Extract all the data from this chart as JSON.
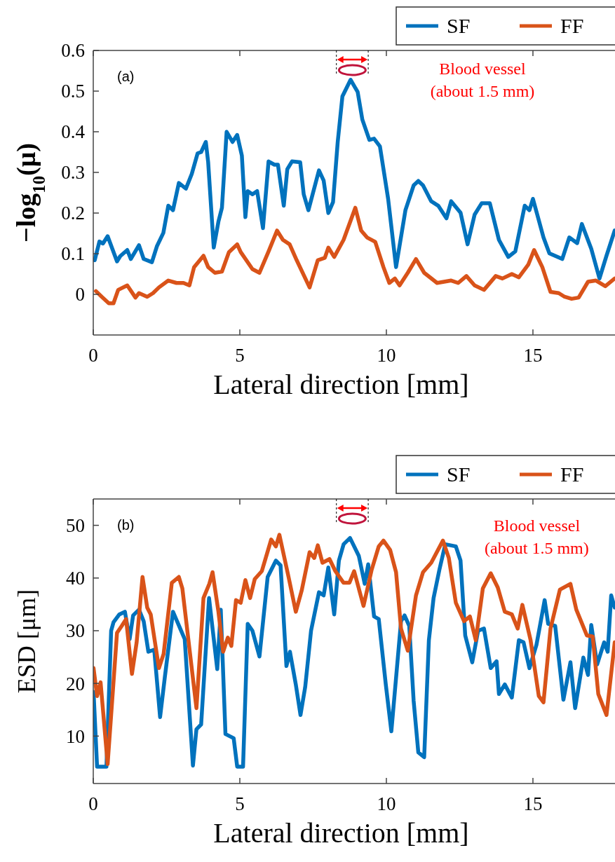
{
  "chart_data": [
    {
      "type": "line",
      "xlabel": "Lateral direction [mm]",
      "ylabel": "−log$_{10}$(μ)",
      "xlim": [
        0,
        17.8
      ],
      "xticks": [
        0,
        5,
        10,
        15
      ],
      "ylim": [
        -0.1,
        0.6
      ],
      "yticks": [
        0,
        0.1,
        0.2,
        0.3,
        0.4,
        0.5,
        0.6
      ],
      "legend": "top right",
      "annotations": [
        "(a)",
        "Blood vessel\n(about 1.5 mm)"
      ],
      "series": [
        {
          "name": "SF",
          "color": "#0072bd",
          "x": [
            0.05,
            0.21,
            0.33,
            0.49,
            0.81,
            0.92,
            1.16,
            1.28,
            1.56,
            1.72,
            2.0,
            2.17,
            2.39,
            2.56,
            2.72,
            2.92,
            3.16,
            3.36,
            3.56,
            3.68,
            3.84,
            3.92,
            4.11,
            4.27,
            4.39,
            4.55,
            4.75,
            4.91,
            5.07,
            5.19,
            5.27,
            5.43,
            5.59,
            5.79,
            5.98,
            6.18,
            6.3,
            6.5,
            6.62,
            6.78,
            7.06,
            7.18,
            7.34,
            7.7,
            7.86,
            8.02,
            8.18,
            8.34,
            8.5,
            8.78,
            9.02,
            9.18,
            9.42,
            9.58,
            9.78,
            10.06,
            10.33,
            10.65,
            10.93,
            11.09,
            11.25,
            11.53,
            11.77,
            12.05,
            12.21,
            12.53,
            12.77,
            13.01,
            13.25,
            13.53,
            13.84,
            14.16,
            14.4,
            14.72,
            14.88,
            15.0,
            15.36,
            15.56,
            16.0,
            16.24,
            16.51,
            16.67,
            16.99,
            17.27,
            17.51,
            17.79
          ],
          "values": [
            0.084,
            0.13,
            0.125,
            0.143,
            0.081,
            0.094,
            0.109,
            0.087,
            0.121,
            0.087,
            0.079,
            0.118,
            0.151,
            0.218,
            0.207,
            0.274,
            0.26,
            0.296,
            0.347,
            0.35,
            0.375,
            0.325,
            0.115,
            0.179,
            0.213,
            0.4,
            0.375,
            0.392,
            0.341,
            0.19,
            0.254,
            0.246,
            0.254,
            0.163,
            0.327,
            0.319,
            0.319,
            0.218,
            0.308,
            0.327,
            0.325,
            0.246,
            0.207,
            0.305,
            0.28,
            0.2,
            0.227,
            0.375,
            0.487,
            0.528,
            0.498,
            0.43,
            0.38,
            0.383,
            0.364,
            0.235,
            0.067,
            0.207,
            0.268,
            0.279,
            0.268,
            0.229,
            0.218,
            0.187,
            0.229,
            0.201,
            0.123,
            0.196,
            0.224,
            0.224,
            0.134,
            0.092,
            0.106,
            0.218,
            0.207,
            0.235,
            0.14,
            0.101,
            0.087,
            0.14,
            0.126,
            0.173,
            0.112,
            0.039,
            0.095,
            0.157
          ]
        },
        {
          "name": "FF",
          "color": "#d95319",
          "x": [
            0.09,
            0.29,
            0.53,
            0.69,
            0.85,
            1.16,
            1.44,
            1.56,
            1.84,
            2.04,
            2.24,
            2.56,
            2.84,
            3.08,
            3.28,
            3.44,
            3.76,
            3.92,
            4.15,
            4.39,
            4.63,
            4.91,
            5.03,
            5.43,
            5.67,
            5.99,
            6.27,
            6.47,
            6.7,
            6.94,
            7.38,
            7.66,
            7.9,
            8.02,
            8.22,
            8.54,
            8.94,
            9.14,
            9.34,
            9.62,
            9.9,
            10.1,
            10.29,
            10.45,
            10.73,
            11.01,
            11.29,
            11.73,
            12.21,
            12.45,
            12.73,
            13.01,
            13.33,
            13.73,
            13.96,
            14.28,
            14.52,
            14.84,
            15.04,
            15.32,
            15.6,
            15.88,
            16.08,
            16.32,
            16.56,
            16.88,
            17.15,
            17.47,
            17.79
          ],
          "values": [
            0.008,
            -0.006,
            -0.022,
            -0.022,
            0.011,
            0.022,
            -0.008,
            0.003,
            -0.006,
            0.003,
            0.017,
            0.034,
            0.028,
            0.028,
            0.022,
            0.067,
            0.095,
            0.067,
            0.053,
            0.056,
            0.104,
            0.123,
            0.104,
            0.062,
            0.053,
            0.107,
            0.157,
            0.134,
            0.123,
            0.084,
            0.017,
            0.084,
            0.09,
            0.115,
            0.092,
            0.134,
            0.213,
            0.157,
            0.14,
            0.129,
            0.067,
            0.028,
            0.039,
            0.022,
            0.053,
            0.087,
            0.053,
            0.028,
            0.034,
            0.028,
            0.045,
            0.022,
            0.011,
            0.045,
            0.039,
            0.05,
            0.042,
            0.073,
            0.109,
            0.067,
            0.006,
            0.003,
            -0.006,
            -0.011,
            -0.008,
            0.031,
            0.034,
            0.02,
            0.039
          ]
        }
      ]
    },
    {
      "type": "line",
      "xlabel": "Lateral direction [mm]",
      "ylabel": "ESD [μm]",
      "xlim": [
        0,
        17.8
      ],
      "xticks": [
        0,
        5,
        10,
        15
      ],
      "ylim": [
        1,
        55
      ],
      "yticks": [
        10,
        20,
        30,
        40,
        50
      ],
      "legend": "top right",
      "annotations": [
        "(b)",
        "Blood vessel\n(about 1.5 mm)"
      ],
      "series": [
        {
          "name": "SF",
          "color": "#0072bd",
          "x": [
            0.01,
            0.13,
            0.45,
            0.61,
            0.69,
            0.89,
            1.08,
            1.24,
            1.36,
            1.56,
            1.72,
            1.88,
            2.08,
            2.28,
            2.44,
            2.72,
            2.92,
            3.12,
            3.4,
            3.52,
            3.68,
            3.95,
            4.07,
            4.23,
            4.35,
            4.51,
            4.79,
            4.91,
            5.11,
            5.27,
            5.43,
            5.67,
            5.95,
            6.23,
            6.39,
            6.59,
            6.71,
            6.91,
            7.07,
            7.23,
            7.43,
            7.7,
            7.86,
            8.02,
            8.22,
            8.38,
            8.54,
            8.76,
            9.06,
            9.26,
            9.38,
            9.58,
            9.74,
            9.98,
            10.17,
            10.5,
            10.62,
            10.78,
            10.93,
            11.09,
            11.29,
            11.45,
            11.61,
            11.81,
            12.01,
            12.37,
            12.53,
            12.69,
            12.93,
            13.13,
            13.33,
            13.56,
            13.76,
            13.84,
            14.04,
            14.28,
            14.52,
            14.68,
            14.88,
            15.12,
            15.4,
            15.52,
            15.76,
            16.04,
            16.28,
            16.44,
            16.72,
            16.88,
            16.99,
            17.19,
            17.43,
            17.55,
            17.67,
            17.79
          ],
          "values": [
            18.4,
            4.2,
            4.2,
            30,
            31.6,
            33.1,
            33.6,
            28.4,
            32.9,
            34,
            31.8,
            26,
            26.4,
            13.6,
            21.1,
            33.6,
            31,
            28.4,
            4.4,
            11.3,
            12.2,
            36.2,
            30.4,
            22.7,
            34,
            10.4,
            9.6,
            4.2,
            4.2,
            31.3,
            30,
            25.1,
            40.2,
            43.3,
            42.4,
            23.3,
            26,
            19.8,
            14,
            19.3,
            30,
            37.3,
            36.7,
            42,
            33.1,
            43.3,
            46.4,
            47.6,
            44.2,
            38.9,
            42.6,
            32.7,
            32.2,
            19.8,
            10.9,
            31.8,
            32.9,
            30.9,
            16.7,
            6.9,
            6,
            28.2,
            36.2,
            41.6,
            46.4,
            46,
            43.3,
            29.1,
            24,
            30,
            30.4,
            22.9,
            24.2,
            18,
            19.8,
            17.3,
            28.2,
            27.8,
            22.9,
            27.3,
            35.8,
            31.3,
            30.9,
            16.9,
            24,
            15.3,
            24.9,
            21.6,
            31.1,
            23.6,
            27.8,
            26,
            36.7,
            34.4
          ]
        },
        {
          "name": "FF",
          "color": "#d95319",
          "x": [
            0.01,
            0.13,
            0.25,
            0.49,
            0.61,
            0.81,
            0.97,
            1.12,
            1.32,
            1.48,
            1.68,
            1.84,
            1.96,
            2.24,
            2.4,
            2.68,
            2.92,
            3.04,
            3.52,
            3.76,
            3.96,
            4.07,
            4.27,
            4.43,
            4.59,
            4.71,
            4.87,
            5.03,
            5.19,
            5.35,
            5.51,
            5.75,
            6.07,
            6.23,
            6.35,
            6.67,
            6.91,
            7.11,
            7.38,
            7.54,
            7.66,
            7.82,
            8.06,
            8.26,
            8.54,
            8.74,
            8.9,
            9.22,
            9.5,
            9.74,
            9.9,
            10.13,
            10.33,
            10.5,
            10.73,
            11.01,
            11.25,
            11.53,
            11.93,
            12.13,
            12.37,
            12.65,
            12.85,
            13.05,
            13.29,
            13.56,
            13.8,
            14.04,
            14.28,
            14.48,
            14.64,
            14.92,
            15.2,
            15.36,
            15.6,
            15.92,
            16.28,
            16.48,
            16.84,
            17.04,
            17.23,
            17.51,
            17.79
          ],
          "values": [
            22.9,
            17.6,
            20.2,
            4.7,
            14,
            29.6,
            30.9,
            32.2,
            21.8,
            27.8,
            40.2,
            34.4,
            33.1,
            22.9,
            25.6,
            39.1,
            40.2,
            38,
            15.3,
            36.2,
            38.9,
            41.1,
            33.6,
            26,
            28.7,
            27.1,
            35.8,
            35.3,
            39.6,
            36.2,
            39.8,
            41.3,
            47.3,
            46,
            48.2,
            40,
            33.6,
            37.6,
            44.9,
            43.8,
            46.2,
            42.9,
            43.6,
            41.3,
            39.1,
            39.1,
            41.3,
            34.7,
            41.6,
            46,
            47.1,
            45.3,
            41.1,
            30.4,
            26.2,
            36.7,
            41.1,
            42.9,
            47.1,
            43.8,
            35.3,
            31.8,
            32.7,
            28.2,
            38,
            40.9,
            38.2,
            33.6,
            33.1,
            30.4,
            34.9,
            28.2,
            17.6,
            16.4,
            30.4,
            37.8,
            38.9,
            34,
            29.1,
            28.9,
            18,
            14,
            27.8
          ]
        }
      ]
    }
  ]
}
